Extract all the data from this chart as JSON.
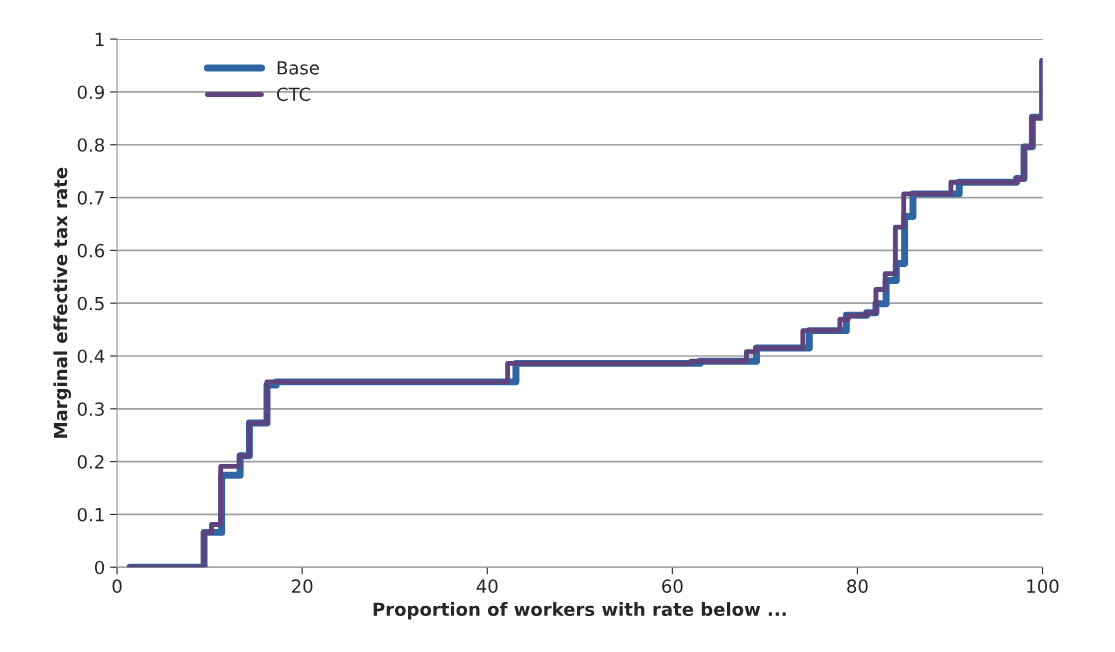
{
  "chart_data": {
    "type": "step",
    "xlabel": "Proportion of workers with rate below ...",
    "ylabel": "Marginal effective tax rate",
    "xlim": [
      0,
      100
    ],
    "xticks": [
      0,
      20,
      40,
      60,
      80,
      100
    ],
    "ylim": [
      0,
      1
    ],
    "yticks": [
      0,
      0.1,
      0.2,
      0.3,
      0.4,
      0.5,
      0.6,
      0.7,
      0.8,
      0.9,
      1
    ],
    "grid": "y",
    "legend": "top left",
    "line_style": "solid",
    "marker": "none",
    "series": [
      {
        "name": "Base",
        "color": "#2f65a3",
        "x": [
          1.4,
          9.4,
          11.3,
          13.3,
          14.3,
          16.2,
          17.2,
          43.1,
          63.0,
          69.1,
          74.8,
          78.8,
          81.0,
          82.0,
          83.1,
          84.2,
          85.1,
          86.0,
          91.0,
          97.2,
          98.0,
          98.9,
          100
        ],
        "values": [
          0,
          0.066,
          0.174,
          0.211,
          0.273,
          0.345,
          0.351,
          0.386,
          0.39,
          0.415,
          0.448,
          0.477,
          0.482,
          0.499,
          0.543,
          0.575,
          0.664,
          0.707,
          0.729,
          0.736,
          0.796,
          0.852,
          0.958
        ]
      },
      {
        "name": "CTC",
        "color": "#5f437f",
        "x": [
          1.4,
          9.4,
          10.2,
          11.2,
          13.2,
          14.3,
          16.2,
          42.2,
          62.0,
          68.0,
          69.0,
          74.1,
          78.1,
          79.0,
          81.0,
          82.0,
          83.0,
          84.1,
          85.0,
          90.1,
          97.2,
          98.0,
          98.9,
          100
        ],
        "values": [
          0,
          0.066,
          0.081,
          0.191,
          0.211,
          0.273,
          0.351,
          0.386,
          0.39,
          0.408,
          0.415,
          0.448,
          0.469,
          0.477,
          0.482,
          0.526,
          0.556,
          0.644,
          0.707,
          0.729,
          0.736,
          0.796,
          0.852,
          0.958
        ]
      }
    ]
  }
}
